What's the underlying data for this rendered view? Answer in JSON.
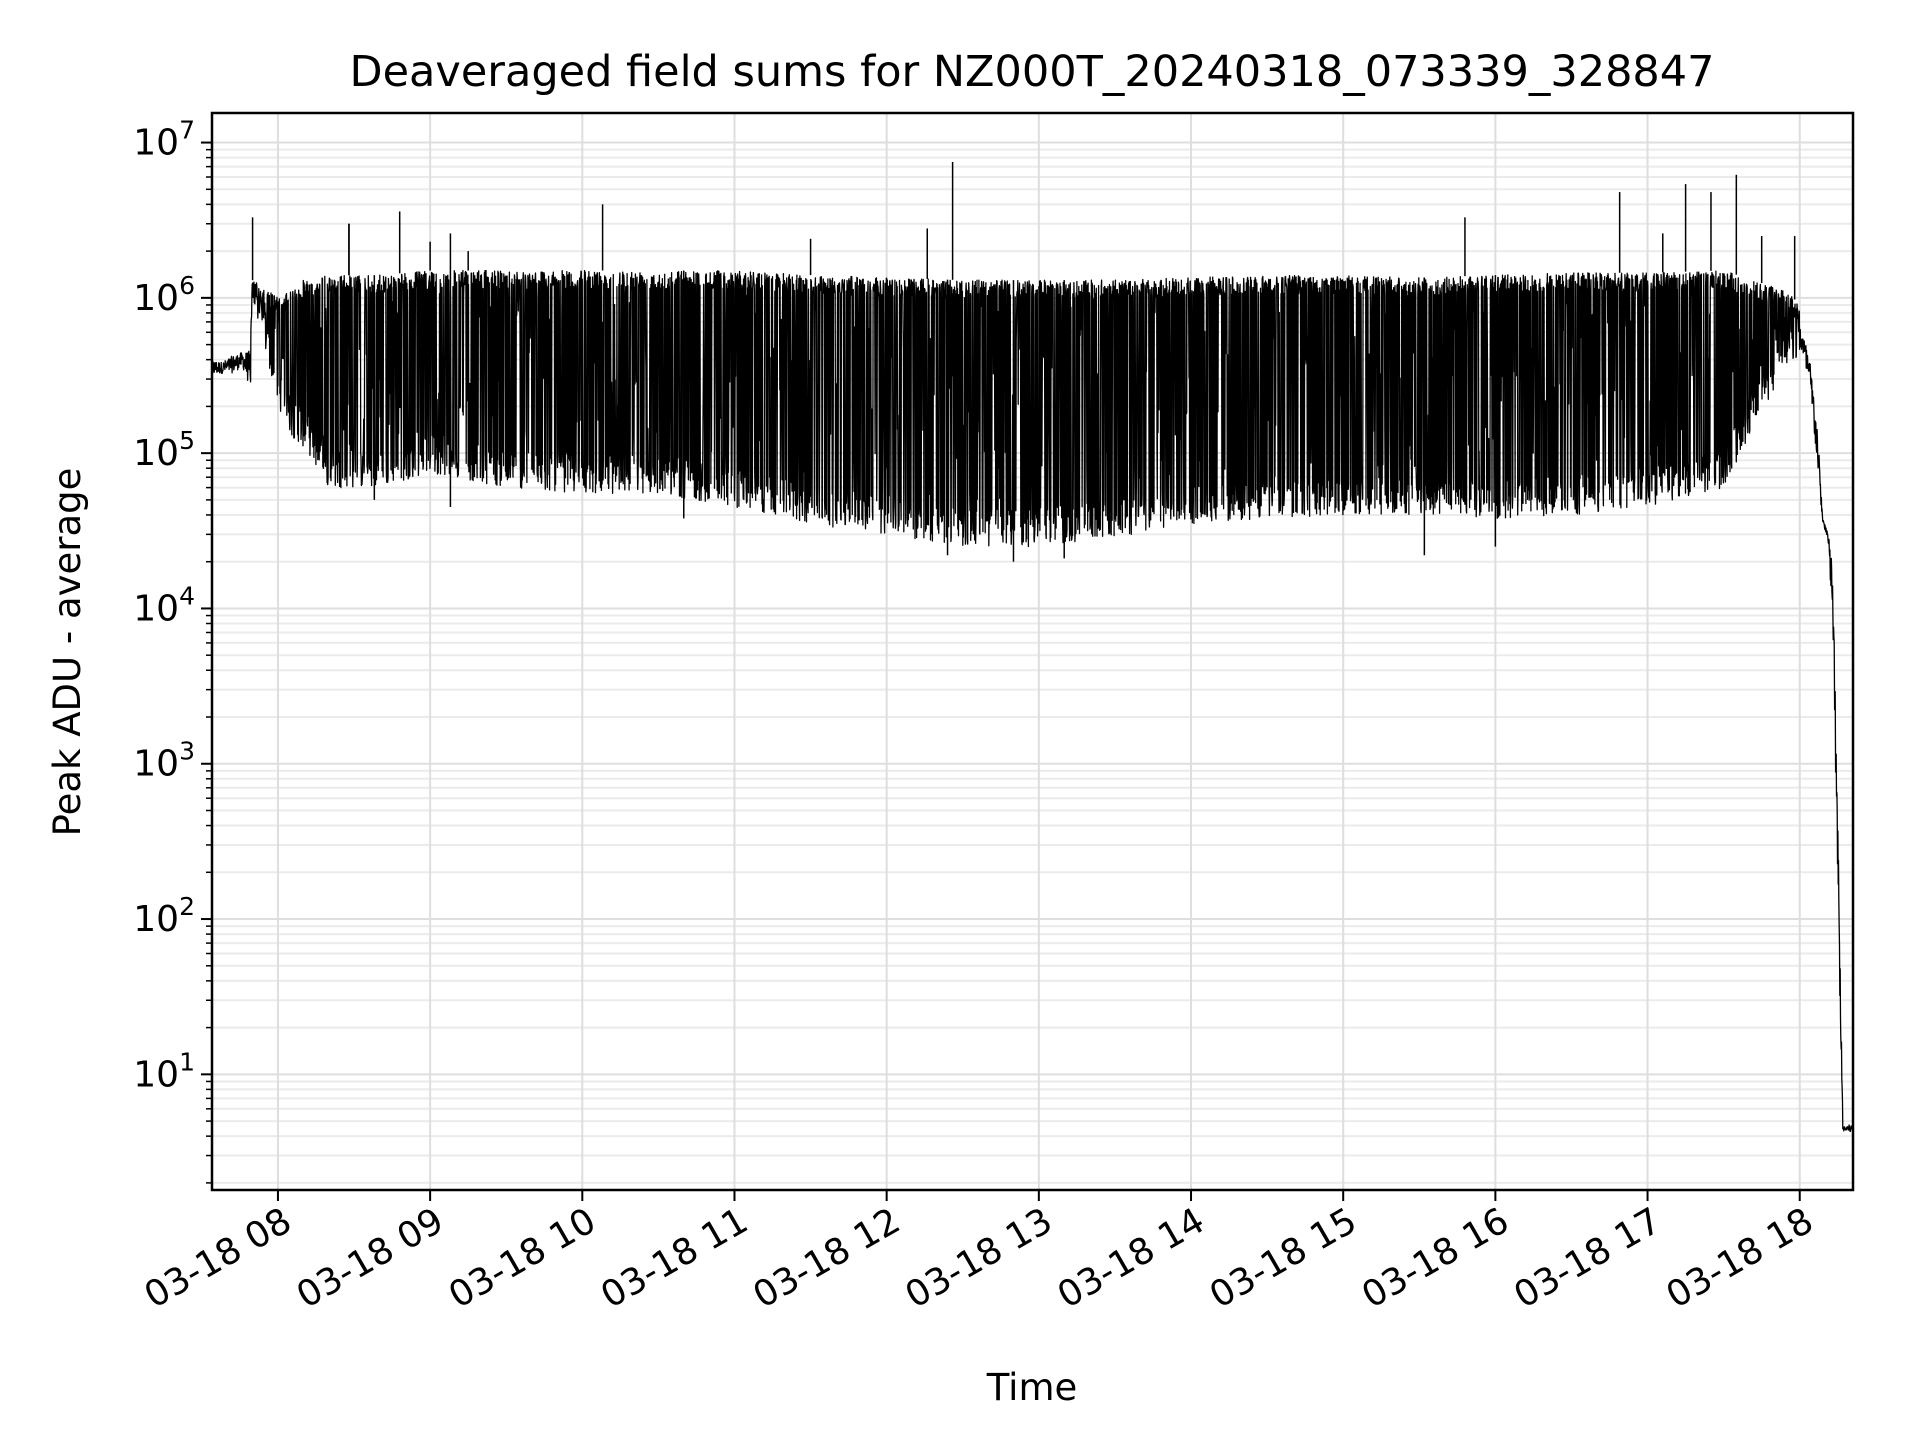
{
  "chart_data": {
    "type": "line",
    "title": "Deaveraged field sums for NZ000T_20240318_073339_328847",
    "xlabel": "Time",
    "ylabel": "Peak ADU - average",
    "yscale": "log",
    "xlim": [
      "2024-03-18 07:34",
      "2024-03-18 18:21"
    ],
    "ylim": [
      1.8,
      15500000
    ],
    "grid": true,
    "grid_minor": true,
    "line_color": "#000000",
    "x_ticks": [
      {
        "value": "2024-03-18 08:00",
        "label": "03-18 08"
      },
      {
        "value": "2024-03-18 09:00",
        "label": "03-18 09"
      },
      {
        "value": "2024-03-18 10:00",
        "label": "03-18 10"
      },
      {
        "value": "2024-03-18 11:00",
        "label": "03-18 11"
      },
      {
        "value": "2024-03-18 12:00",
        "label": "03-18 12"
      },
      {
        "value": "2024-03-18 13:00",
        "label": "03-18 13"
      },
      {
        "value": "2024-03-18 14:00",
        "label": "03-18 14"
      },
      {
        "value": "2024-03-18 15:00",
        "label": "03-18 15"
      },
      {
        "value": "2024-03-18 16:00",
        "label": "03-18 16"
      },
      {
        "value": "2024-03-18 17:00",
        "label": "03-18 17"
      },
      {
        "value": "2024-03-18 18:00",
        "label": "03-18 18"
      }
    ],
    "y_ticks": [
      {
        "value": 10,
        "base": "10",
        "exp": "1"
      },
      {
        "value": 100,
        "base": "10",
        "exp": "2"
      },
      {
        "value": 1000,
        "base": "10",
        "exp": "3"
      },
      {
        "value": 10000,
        "base": "10",
        "exp": "4"
      },
      {
        "value": 100000,
        "base": "10",
        "exp": "5"
      },
      {
        "value": 1000000,
        "base": "10",
        "exp": "6"
      },
      {
        "value": 10000000,
        "base": "10",
        "exp": "7"
      }
    ],
    "series": [
      {
        "x": [
          "2024-03-18 07:34",
          "2024-03-18 07:38",
          "2024-03-18 07:42",
          "2024-03-18 07:46",
          "2024-03-18 07:49",
          "2024-03-18 07:50",
          "2024-03-18 07:52",
          "2024-03-18 07:55",
          "2024-03-18 07:58",
          "2024-03-18 08:00",
          "2024-03-18 08:05",
          "2024-03-18 08:10",
          "2024-03-18 08:20",
          "2024-03-18 08:40",
          "2024-03-18 09:00",
          "2024-03-18 09:30",
          "2024-03-18 10:00",
          "2024-03-18 10:30",
          "2024-03-18 11:00",
          "2024-03-18 11:30",
          "2024-03-18 12:00",
          "2024-03-18 12:30",
          "2024-03-18 13:00",
          "2024-03-18 13:30",
          "2024-03-18 14:00",
          "2024-03-18 14:30",
          "2024-03-18 15:00",
          "2024-03-18 15:30",
          "2024-03-18 16:00",
          "2024-03-18 16:30",
          "2024-03-18 17:00",
          "2024-03-18 17:30",
          "2024-03-18 17:55",
          "2024-03-18 18:00",
          "2024-03-18 18:04",
          "2024-03-18 18:07",
          "2024-03-18 18:09",
          "2024-03-18 18:11",
          "2024-03-18 18:13",
          "2024-03-18 18:15",
          "2024-03-18 18:17",
          "2024-03-18 18:19",
          "2024-03-18 18:21"
        ],
        "low": [
          280000,
          300000,
          290000,
          320000,
          200000,
          900000,
          700000,
          450000,
          280000,
          200000,
          130000,
          110000,
          60000,
          60000,
          75000,
          60000,
          55000,
          55000,
          45000,
          35000,
          30000,
          25000,
          25000,
          28000,
          35000,
          38000,
          40000,
          40000,
          38000,
          40000,
          45000,
          60000,
          380000,
          400000,
          200000,
          60000,
          35000,
          25000,
          5000,
          60,
          4,
          4,
          4
        ],
        "high": [
          450000,
          420000,
          480000,
          500000,
          600000,
          1300000,
          1200000,
          1100000,
          1100000,
          1000000,
          1100000,
          1300000,
          1400000,
          1400000,
          1500000,
          1500000,
          1500000,
          1500000,
          1500000,
          1400000,
          1350000,
          1300000,
          1300000,
          1300000,
          1350000,
          1400000,
          1400000,
          1350000,
          1400000,
          1450000,
          1450000,
          1500000,
          1100000,
          900000,
          500000,
          200000,
          40000,
          35000,
          30000,
          1000,
          5,
          5,
          5
        ]
      }
    ],
    "spikes": [
      {
        "x": "2024-03-18 07:50",
        "y": 3300000
      },
      {
        "x": "2024-03-18 08:28",
        "y": 3000000
      },
      {
        "x": "2024-03-18 08:48",
        "y": 3600000
      },
      {
        "x": "2024-03-18 09:00",
        "y": 2300000
      },
      {
        "x": "2024-03-18 09:08",
        "y": 2600000
      },
      {
        "x": "2024-03-18 09:15",
        "y": 2000000
      },
      {
        "x": "2024-03-18 10:08",
        "y": 4000000
      },
      {
        "x": "2024-03-18 11:30",
        "y": 2400000
      },
      {
        "x": "2024-03-18 12:16",
        "y": 2800000
      },
      {
        "x": "2024-03-18 12:26",
        "y": 7500000
      },
      {
        "x": "2024-03-18 15:48",
        "y": 3300000
      },
      {
        "x": "2024-03-18 16:49",
        "y": 4800000
      },
      {
        "x": "2024-03-18 17:06",
        "y": 2600000
      },
      {
        "x": "2024-03-18 17:15",
        "y": 5400000
      },
      {
        "x": "2024-03-18 17:25",
        "y": 4800000
      },
      {
        "x": "2024-03-18 17:35",
        "y": 6200000
      },
      {
        "x": "2024-03-18 17:45",
        "y": 2500000
      },
      {
        "x": "2024-03-18 17:58",
        "y": 2500000
      }
    ],
    "spans": [
      {
        "x": "2024-03-18 08:28",
        "y": 3000000
      },
      {
        "x": "2024-03-18 08:38",
        "y": 50000
      },
      {
        "x": "2024-03-18 09:08",
        "y": 45000
      },
      {
        "x": "2024-03-18 10:40",
        "y": 38000
      },
      {
        "x": "2024-03-18 12:24",
        "y": 22000
      },
      {
        "x": "2024-03-18 12:50",
        "y": 20000
      },
      {
        "x": "2024-03-18 13:10",
        "y": 21000
      },
      {
        "x": "2024-03-18 15:32",
        "y": 22000
      },
      {
        "x": "2024-03-18 16:00",
        "y": 25000
      }
    ]
  }
}
